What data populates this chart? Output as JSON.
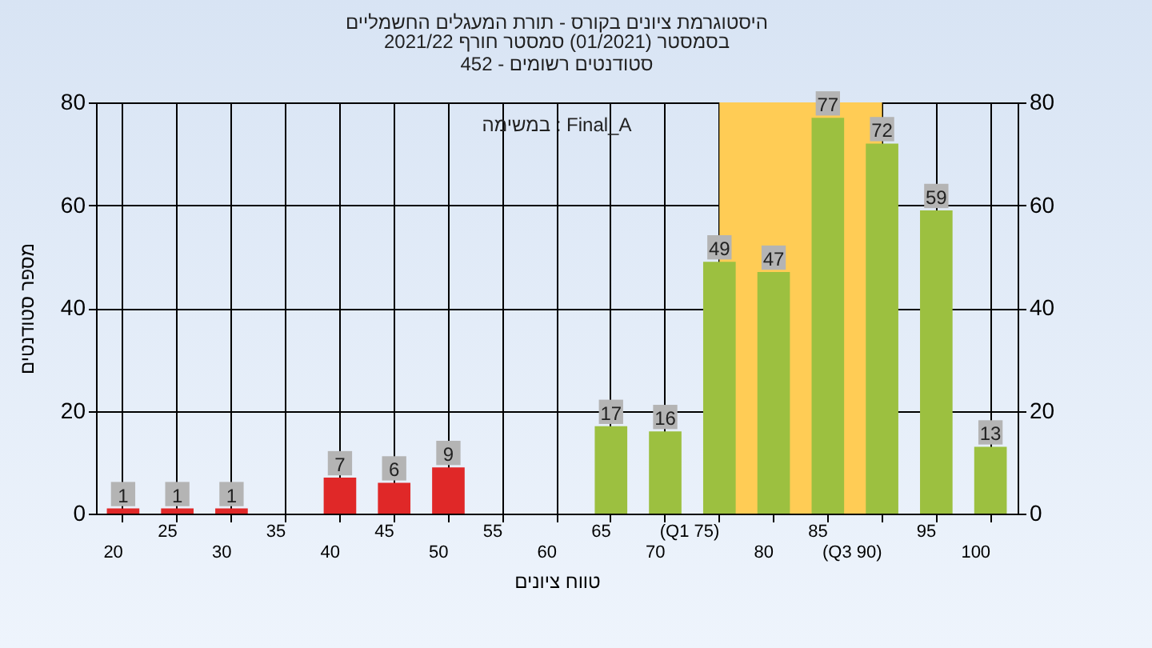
{
  "chart_data": {
    "type": "bar",
    "title": "היסטוגרמת ציונים בקורס - תורת המעגלים החשמליים",
    "subtitle": "בסמסטר  (01/2021)  סמסטר חורף 2021/22\nסטודנטים רשומים - 452",
    "xlabel": "טווח ציונים",
    "ylabel": "מספר סטודנטים",
    "annotations": [
      "במשימה : Final_A"
    ],
    "categories": [
      "20",
      "25",
      "30",
      "35",
      "40",
      "45",
      "50",
      "55",
      "60",
      "65",
      "70",
      "(Q1 75)",
      "80",
      "85",
      "(Q3 90)",
      "95",
      "100"
    ],
    "values": [
      1,
      1,
      1,
      null,
      7,
      6,
      9,
      null,
      null,
      17,
      16,
      49,
      47,
      77,
      72,
      59,
      13
    ],
    "colors": [
      "#e02828",
      "#e02828",
      "#e02828",
      "#e02828",
      "#e02828",
      "#e02828",
      "#e02828",
      "#e02828",
      "#9cc040",
      "#9cc040",
      "#9cc040",
      "#9cc040",
      "#9cc040",
      "#9cc040",
      "#9cc040",
      "#9cc040",
      "#9cc040"
    ],
    "bands": [
      {
        "axis": "x",
        "from": "(Q1 75)",
        "to": "(Q3 90)",
        "color": "#ffcc55"
      }
    ],
    "ylim": [
      0,
      80
    ],
    "yticks": [
      0,
      20,
      40,
      60,
      80
    ],
    "y2lim": [
      0,
      80
    ],
    "y2ticks": [
      0,
      20,
      40,
      60,
      80
    ],
    "grid": true,
    "data_labels": true
  }
}
